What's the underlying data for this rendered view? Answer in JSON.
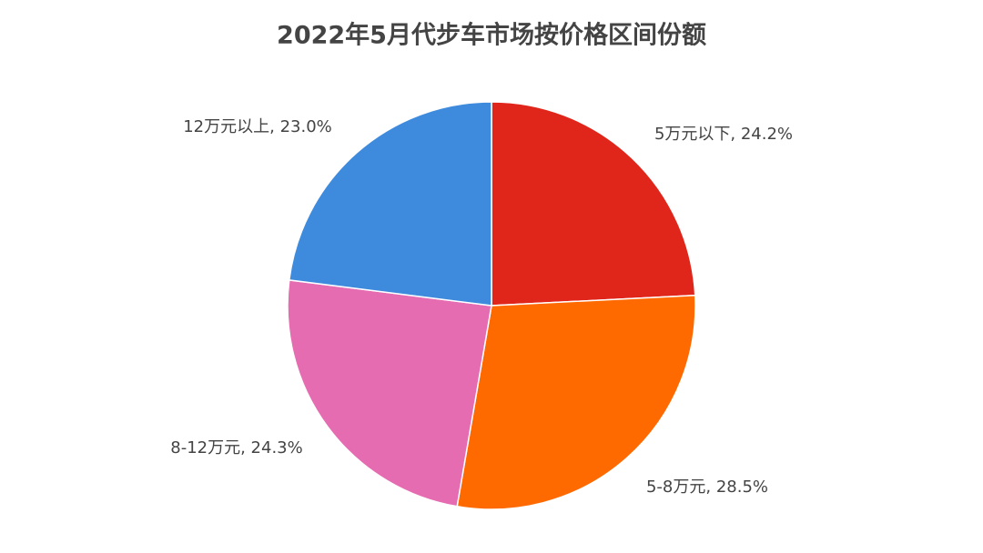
{
  "chart_data": {
    "type": "pie",
    "title": "2022年5月代步车市场按价格区间份额",
    "categories": [
      "5万元以下",
      "5-8万元",
      "8-12万元",
      "12万元以上"
    ],
    "values": [
      24.2,
      28.5,
      24.3,
      23.0
    ],
    "value_labels": [
      ", 24.2%",
      ", 28.5%",
      ", 24.3%",
      ", 23.0%"
    ],
    "colors": [
      "#e0251b",
      "#ff6a00",
      "#e66cb2",
      "#3e8bdd"
    ]
  }
}
